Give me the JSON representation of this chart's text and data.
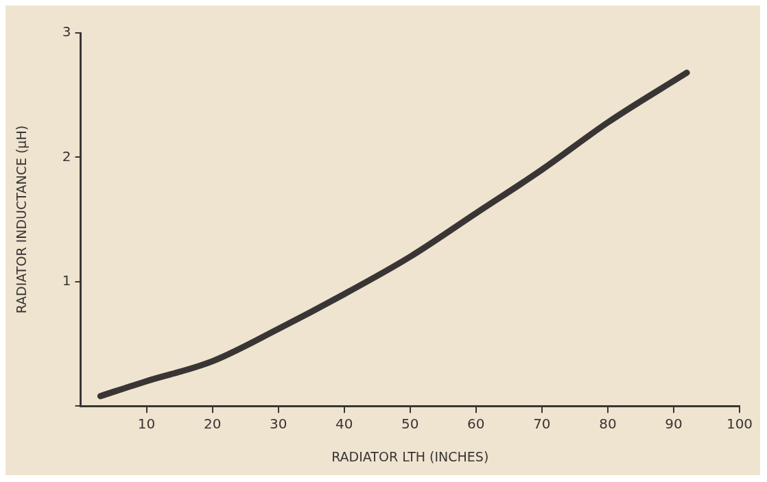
{
  "chart_data": {
    "type": "line",
    "xlabel": "RADIATOR LTH (INCHES)",
    "ylabel": "RADIATOR INDUCTANCE (µH)",
    "x": [
      3,
      10,
      20,
      30,
      40,
      50,
      60,
      70,
      80,
      92
    ],
    "series": [
      {
        "color": "#3a3535",
        "values": [
          0.08,
          0.2,
          0.36,
          0.62,
          0.9,
          1.2,
          1.55,
          1.9,
          2.28,
          2.68
        ]
      }
    ],
    "xlim": [
      0,
      100
    ],
    "xticks": [
      10,
      20,
      30,
      40,
      50,
      60,
      70,
      80,
      90,
      100
    ],
    "ylim": [
      0,
      3
    ],
    "yticks": [
      {
        "value": 0,
        "label": null
      },
      1,
      2,
      3
    ],
    "grid": false,
    "legend": false,
    "marker": "none",
    "line_style": "solid"
  }
}
